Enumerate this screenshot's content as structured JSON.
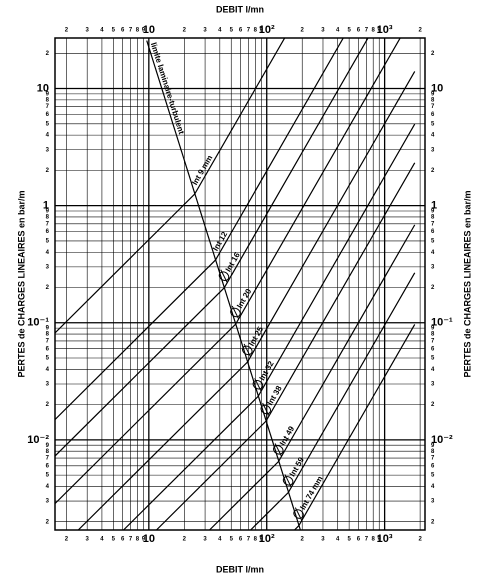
{
  "chart_data": {
    "type": "line",
    "x_label": "DEBIT   l/mn",
    "y_label": "PERTES de CHARGES LINEAIRES en bar/m",
    "log_x": true,
    "log_y": true,
    "grid": true,
    "color": "#000000",
    "xlim": [
      1.6,
      2200
    ],
    "ylim": [
      0.0017,
      27
    ],
    "xticks": [
      2,
      3,
      4,
      5,
      6,
      7,
      8,
      9,
      10,
      {
        "value": 20,
        "label": "2"
      },
      {
        "value": 30,
        "label": "3"
      },
      {
        "value": 40,
        "label": "4"
      },
      {
        "value": 50,
        "label": "5"
      },
      {
        "value": 60,
        "label": "6"
      },
      {
        "value": 70,
        "label": "7"
      },
      {
        "value": 80,
        "label": "8"
      },
      {
        "value": 90,
        "label": "9"
      },
      {
        "value": 100,
        "label": "10²"
      },
      {
        "value": 200,
        "label": "2"
      },
      {
        "value": 300,
        "label": "3"
      },
      {
        "value": 400,
        "label": "4"
      },
      {
        "value": 500,
        "label": "5"
      },
      {
        "value": 600,
        "label": "6"
      },
      {
        "value": 700,
        "label": "7"
      },
      {
        "value": 800,
        "label": "8"
      },
      {
        "value": 900,
        "label": "9"
      },
      {
        "value": 1000,
        "label": "10³"
      },
      {
        "value": 2000,
        "label": "2"
      }
    ],
    "yticks": [
      {
        "value": 0.002,
        "label": "2"
      },
      {
        "value": 0.003,
        "label": "3"
      },
      {
        "value": 0.004,
        "label": "4"
      },
      {
        "value": 0.005,
        "label": "5"
      },
      {
        "value": 0.006,
        "label": "6"
      },
      {
        "value": 0.007,
        "label": "7"
      },
      {
        "value": 0.008,
        "label": "8"
      },
      {
        "value": 0.009,
        "label": "9"
      },
      {
        "value": 0.01,
        "label": "10⁻²"
      },
      {
        "value": 0.02,
        "label": "2"
      },
      {
        "value": 0.03,
        "label": "3"
      },
      {
        "value": 0.04,
        "label": "4"
      },
      {
        "value": 0.05,
        "label": "5"
      },
      {
        "value": 0.06,
        "label": "6"
      },
      {
        "value": 0.07,
        "label": "7"
      },
      {
        "value": 0.08,
        "label": "8"
      },
      {
        "value": 0.09,
        "label": "9"
      },
      {
        "value": 0.1,
        "label": "10⁻¹"
      },
      {
        "value": 0.2,
        "label": "2"
      },
      {
        "value": 0.3,
        "label": "3"
      },
      {
        "value": 0.4,
        "label": "4"
      },
      {
        "value": 0.5,
        "label": "5"
      },
      {
        "value": 0.6,
        "label": "6"
      },
      {
        "value": 0.7,
        "label": "7"
      },
      {
        "value": 0.8,
        "label": "8"
      },
      {
        "value": 0.9,
        "label": "9"
      },
      1,
      2,
      3,
      4,
      5,
      6,
      7,
      8,
      9,
      10,
      {
        "value": 20,
        "label": "2"
      }
    ],
    "limit": {
      "name": "limite laminaire-turbulent",
      "x": [
        9.6,
        193
      ],
      "values": [
        25.7,
        0.0017
      ]
    },
    "series": [
      {
        "name": "Int 9  mm",
        "x": [
          1.6,
          24.5,
          141.6
        ],
        "values": [
          0.0818,
          1.256,
          26.9
        ]
      },
      {
        "name": "Int 12",
        "x": [
          1.6,
          36.8,
          444.6
        ],
        "values": [
          0.0149,
          0.3436,
          26.9
        ]
      },
      {
        "name": "Int 16",
        "x": [
          1.6,
          43.6,
          721
        ],
        "values": [
          0.00728,
          0.1986,
          26.9
        ]
      },
      {
        "name": "Int 20",
        "x": [
          1.6,
          54.5,
          1352
        ],
        "values": [
          0.00286,
          0.0973,
          26.9
        ]
      },
      {
        "name": "Int 25",
        "x": [
          2.52,
          68.7,
          1800
        ],
        "values": [
          0.0017,
          0.0462,
          14.0
        ]
      },
      {
        "name": "Int 32",
        "x": [
          6.1,
          84.5,
          1800
        ],
        "values": [
          0.0017,
          0.0235,
          4.97
        ]
      },
      {
        "name": "Int 38",
        "x": [
          11.6,
          98.6,
          1800
        ],
        "values": [
          0.0017,
          0.01445,
          2.32
        ]
      },
      {
        "name": "Int 49",
        "x": [
          32.7,
          125.9,
          1800
        ],
        "values": [
          0.0017,
          0.00653,
          0.685
        ]
      },
      {
        "name": "Int 59",
        "x": [
          73,
          152.4,
          1800
        ],
        "values": [
          0.0017,
          0.00355,
          0.267
        ]
      },
      {
        "name": "Int 74 mm",
        "x": [
          172,
          187,
          1800
        ],
        "values": [
          0.0017,
          0.00185,
          0.0968
        ]
      }
    ]
  }
}
